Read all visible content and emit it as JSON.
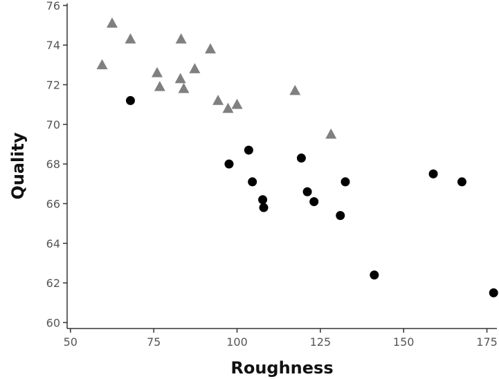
{
  "chart_data": {
    "type": "scatter",
    "title": "",
    "xlabel": "Roughness",
    "ylabel": "Quality",
    "xlim": [
      49,
      178
    ],
    "ylim": [
      59.7,
      76.1
    ],
    "xticks": [
      50,
      75,
      100,
      125,
      150,
      175
    ],
    "yticks": [
      60,
      62,
      64,
      66,
      68,
      70,
      72,
      74,
      76
    ],
    "grid": false,
    "legend": "none",
    "colors": {
      "triangle": "#808080",
      "circle": "#000000",
      "axis": "#333333"
    },
    "series": [
      {
        "marker": "triangle",
        "color": "#808080",
        "points": [
          {
            "x": 59.5,
            "y": 73.0
          },
          {
            "x": 62.5,
            "y": 75.1
          },
          {
            "x": 68,
            "y": 74.3
          },
          {
            "x": 76,
            "y": 72.6
          },
          {
            "x": 76.8,
            "y": 71.9
          },
          {
            "x": 83,
            "y": 72.3
          },
          {
            "x": 83.2,
            "y": 74.3
          },
          {
            "x": 84,
            "y": 71.8
          },
          {
            "x": 87.3,
            "y": 72.8
          },
          {
            "x": 92,
            "y": 73.8
          },
          {
            "x": 94.3,
            "y": 71.2
          },
          {
            "x": 97.3,
            "y": 70.8
          },
          {
            "x": 100,
            "y": 71.0
          },
          {
            "x": 117.4,
            "y": 71.7
          },
          {
            "x": 128.2,
            "y": 69.5
          }
        ]
      },
      {
        "marker": "circle",
        "color": "#000000",
        "points": [
          {
            "x": 68,
            "y": 71.2
          },
          {
            "x": 97.6,
            "y": 68.0
          },
          {
            "x": 103.5,
            "y": 68.7
          },
          {
            "x": 104.6,
            "y": 67.1
          },
          {
            "x": 107.7,
            "y": 66.2
          },
          {
            "x": 108,
            "y": 65.8
          },
          {
            "x": 119.3,
            "y": 68.3
          },
          {
            "x": 121.1,
            "y": 66.6
          },
          {
            "x": 123.1,
            "y": 66.1
          },
          {
            "x": 131,
            "y": 65.4
          },
          {
            "x": 132.5,
            "y": 67.1
          },
          {
            "x": 141.2,
            "y": 62.4
          },
          {
            "x": 158.9,
            "y": 67.5
          },
          {
            "x": 167.5,
            "y": 67.1
          },
          {
            "x": 177,
            "y": 61.5
          }
        ]
      }
    ]
  }
}
